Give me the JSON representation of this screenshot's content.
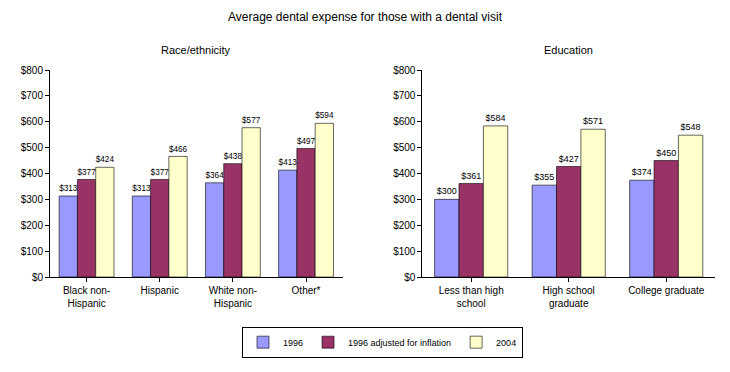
{
  "title": "Average dental expense for those with a dental visit",
  "legend": "bottom",
  "chart_data": [
    {
      "type": "bar",
      "title": "Race/ethnicity",
      "categories": [
        "Black non-Hispanic",
        "Hispanic",
        "White non-Hispanic",
        "Other*"
      ],
      "series": [
        {
          "name": "1996",
          "color": "#9999ff",
          "values": [
            313,
            313,
            364,
            413
          ],
          "value_labels": [
            "$313",
            "$313",
            "$364",
            "$413"
          ]
        },
        {
          "name": "1996 adjusted for inflation",
          "color": "#993366",
          "values": [
            377,
            377,
            438,
            497
          ],
          "value_labels": [
            "$377",
            "$377",
            "$438",
            "$497"
          ]
        },
        {
          "name": "2004",
          "color": "#ffffcc",
          "values": [
            424,
            466,
            577,
            594
          ],
          "value_labels": [
            "$424",
            "$466",
            "$577",
            "$594"
          ]
        }
      ],
      "ylim": [
        0,
        800
      ],
      "yticks": [
        {
          "value": 0,
          "label": "$0"
        },
        {
          "value": 100,
          "label": "$100"
        },
        {
          "value": 200,
          "label": "$200"
        },
        {
          "value": 300,
          "label": "$300"
        },
        {
          "value": 400,
          "label": "$400"
        },
        {
          "value": 500,
          "label": "$500"
        },
        {
          "value": 600,
          "label": "$600"
        },
        {
          "value": 700,
          "label": "$700"
        },
        {
          "value": 800,
          "label": "$800"
        }
      ],
      "grid": false,
      "data_labels": true
    },
    {
      "type": "bar",
      "title": "Education",
      "categories": [
        "Less than high school",
        "High school graduate",
        "College graduate"
      ],
      "series": [
        {
          "name": "1996",
          "color": "#9999ff",
          "values": [
            300,
            355,
            374
          ],
          "value_labels": [
            "$300",
            "$355",
            "$374"
          ]
        },
        {
          "name": "1996 adjusted for inflation",
          "color": "#993366",
          "values": [
            361,
            427,
            450
          ],
          "value_labels": [
            "$361",
            "$427",
            "$450"
          ]
        },
        {
          "name": "2004",
          "color": "#ffffcc",
          "values": [
            584,
            571,
            548
          ],
          "value_labels": [
            "$584",
            "$571",
            "$548"
          ]
        }
      ],
      "ylim": [
        0,
        800
      ],
      "yticks": [
        {
          "value": 0,
          "label": "$0"
        },
        {
          "value": 100,
          "label": "$100"
        },
        {
          "value": 200,
          "label": "$200"
        },
        {
          "value": 300,
          "label": "$300"
        },
        {
          "value": 400,
          "label": "$400"
        },
        {
          "value": 500,
          "label": "$500"
        },
        {
          "value": 600,
          "label": "$600"
        },
        {
          "value": 700,
          "label": "$700"
        },
        {
          "value": 800,
          "label": "$800"
        }
      ],
      "grid": false,
      "data_labels": true
    }
  ]
}
